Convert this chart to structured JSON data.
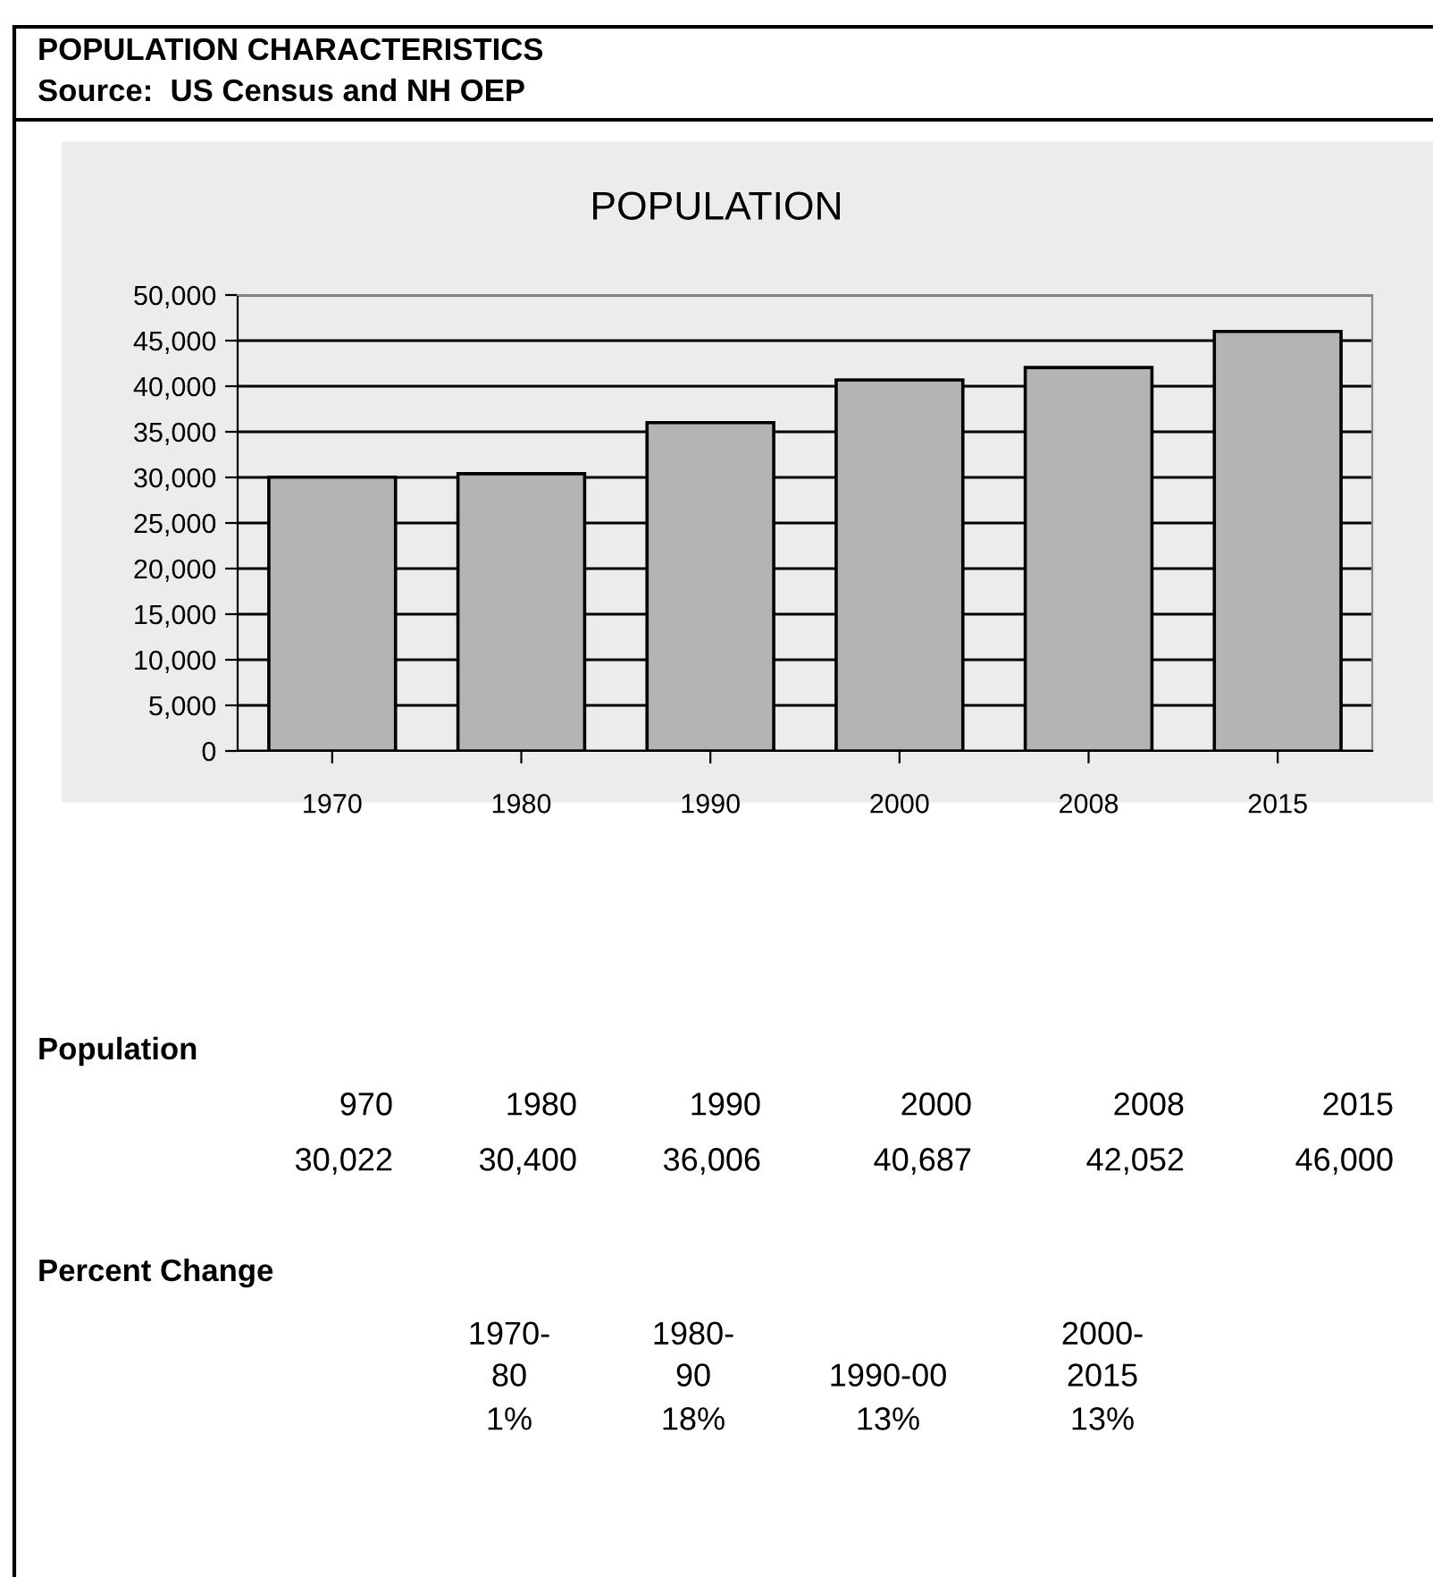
{
  "chart_data": {
    "type": "bar",
    "title": "POPULATION",
    "categories": [
      "1970",
      "1980",
      "1990",
      "2000",
      "2008",
      "2015"
    ],
    "values": [
      30022,
      30400,
      36006,
      40687,
      42052,
      46000
    ],
    "value_labels": [
      "30,022",
      "30,400",
      "36,006",
      "40,687",
      "42,052",
      "46,000"
    ],
    "color": "#b4b4b4",
    "ylim": [
      0,
      50000
    ],
    "yticks": [
      0,
      {
        "value": 5000,
        "label": "5,000"
      },
      {
        "value": 10000,
        "label": "10,000"
      },
      {
        "value": 15000,
        "label": "15,000"
      },
      {
        "value": 20000,
        "label": "20,000"
      },
      {
        "value": 25000,
        "label": "25,000"
      },
      {
        "value": 30000,
        "label": "30,000"
      },
      {
        "value": 35000,
        "label": "35,000"
      },
      {
        "value": 40000,
        "label": "40,000"
      },
      {
        "value": 45000,
        "label": "45,000"
      },
      {
        "value": 50000,
        "label": "50,000"
      }
    ],
    "grid": "y",
    "annotations": [
      "POPULATION CHARACTERISTICS",
      "Source:  US Census and NH OEP",
      "Population",
      "970",
      "1980",
      "1990",
      "2000",
      "2008",
      "2015",
      "Percent Change",
      "1970-\n80",
      "1980-\n90",
      "1990-00",
      "2000-\n2015",
      "1%",
      "18%",
      "13%",
      "13%"
    ]
  }
}
